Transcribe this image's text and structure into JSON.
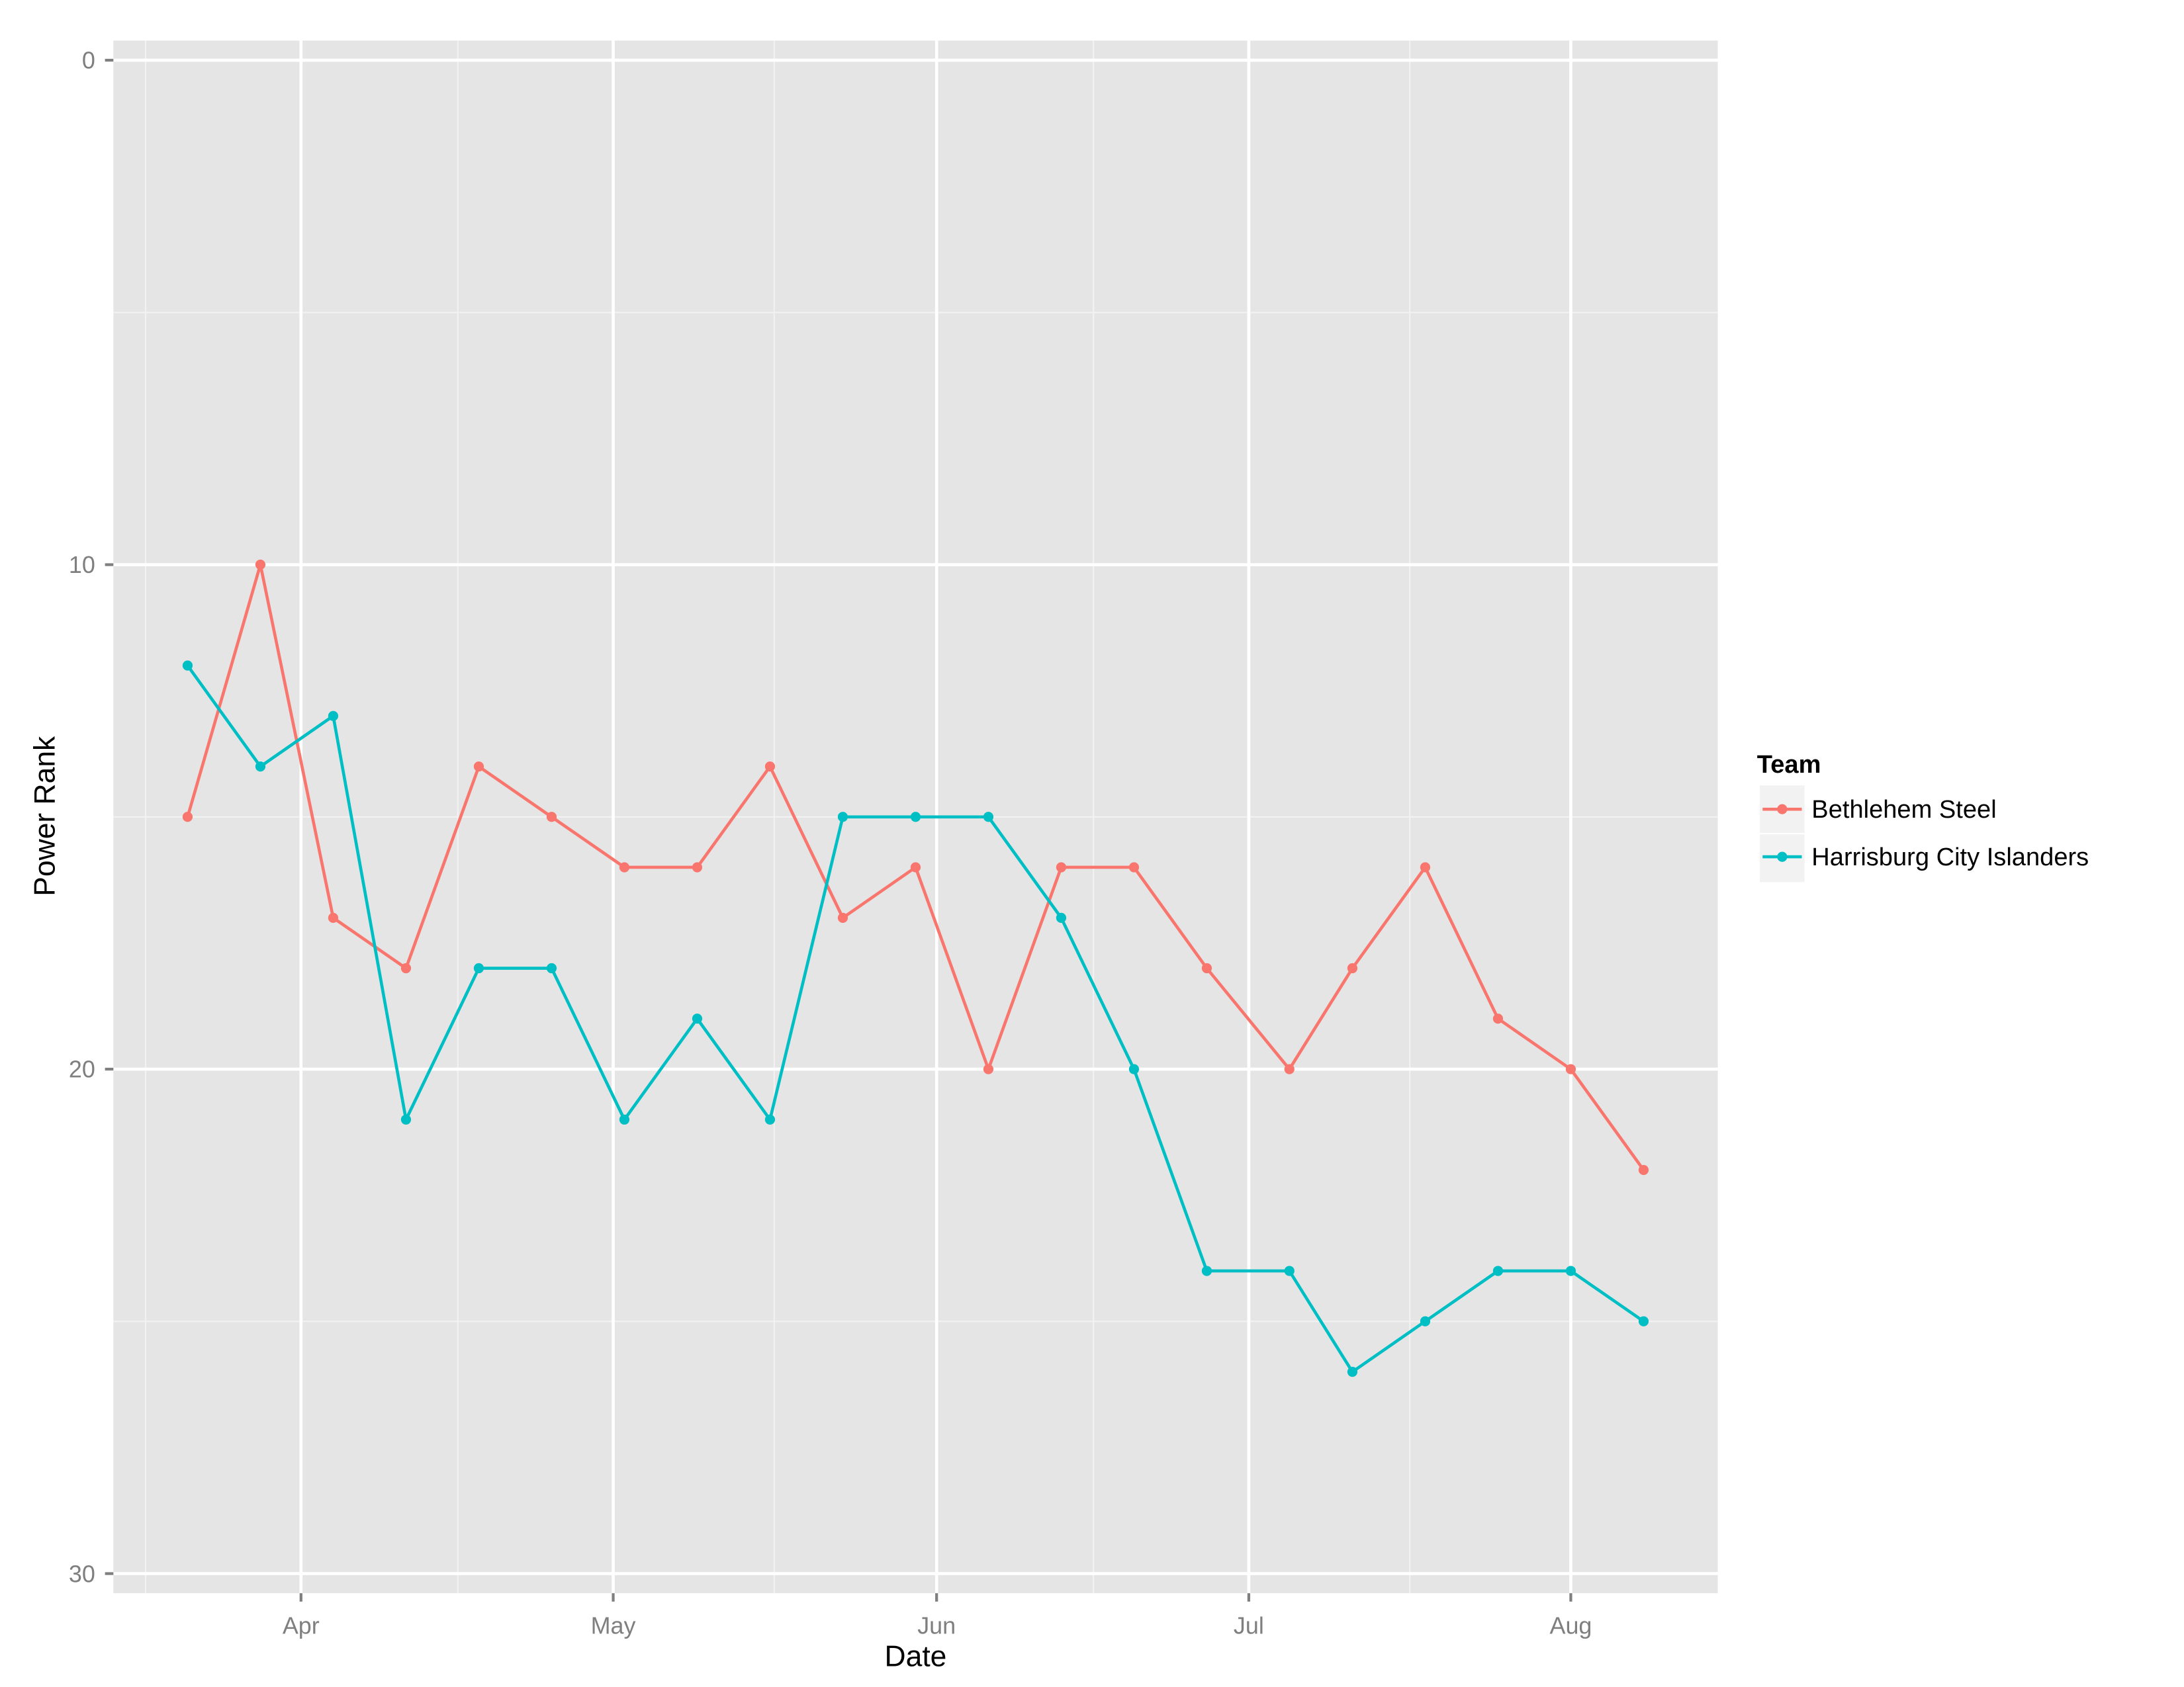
{
  "chart_data": {
    "type": "line",
    "title": "",
    "xlabel": "Date",
    "ylabel": "Power Rank",
    "y_reversed": true,
    "ylim": [
      0,
      30
    ],
    "y_ticks": [
      0,
      10,
      20,
      30
    ],
    "x_tick_labels": [
      "Apr",
      "May",
      "Jun",
      "Jul",
      "Aug"
    ],
    "grid": true,
    "legend_position": "right",
    "legend_title": "Team",
    "x": [
      "Mar 21",
      "Mar 28",
      "Apr 4",
      "Apr 11",
      "Apr 18",
      "Apr 25",
      "May 2",
      "May 9",
      "May 16",
      "May 23",
      "May 30",
      "Jun 6",
      "Jun 13",
      "Jun 20",
      "Jun 27",
      "Jul 5",
      "Jul 11",
      "Jul 18",
      "Jul 25",
      "Aug 1",
      "Aug 8"
    ],
    "series": [
      {
        "name": "Bethlehem Steel",
        "color": "#F8766D",
        "values": [
          15,
          10,
          17,
          18,
          14,
          15,
          16,
          16,
          14,
          17,
          16,
          20,
          16,
          16,
          18,
          20,
          18,
          16,
          19,
          20,
          22
        ]
      },
      {
        "name": "Harrisburg City Islanders",
        "color": "#00BFC4",
        "values": [
          12,
          14,
          13,
          21,
          18,
          18,
          21,
          19,
          21,
          15,
          15,
          15,
          17,
          20,
          24,
          24,
          26,
          25,
          24,
          24,
          25
        ]
      }
    ]
  },
  "axes": {
    "x_title": "Date",
    "y_title": "Power Rank",
    "y_tick_labels": [
      "0",
      "10",
      "20",
      "30"
    ],
    "x_tick_labels": [
      "Apr",
      "May",
      "Jun",
      "Jul",
      "Aug"
    ]
  },
  "legend": {
    "title": "Team",
    "items": [
      {
        "label": "Bethlehem Steel",
        "color": "#F8766D"
      },
      {
        "label": "Harrisburg City Islanders",
        "color": "#00BFC4"
      }
    ]
  },
  "style": {
    "panel_bg": "#E5E5E5",
    "grid_major": "#FFFFFF",
    "grid_minor": "#F2F2F2",
    "tick_color": "#7F7F7F",
    "legend_key_bg": "#F2F2F2"
  }
}
